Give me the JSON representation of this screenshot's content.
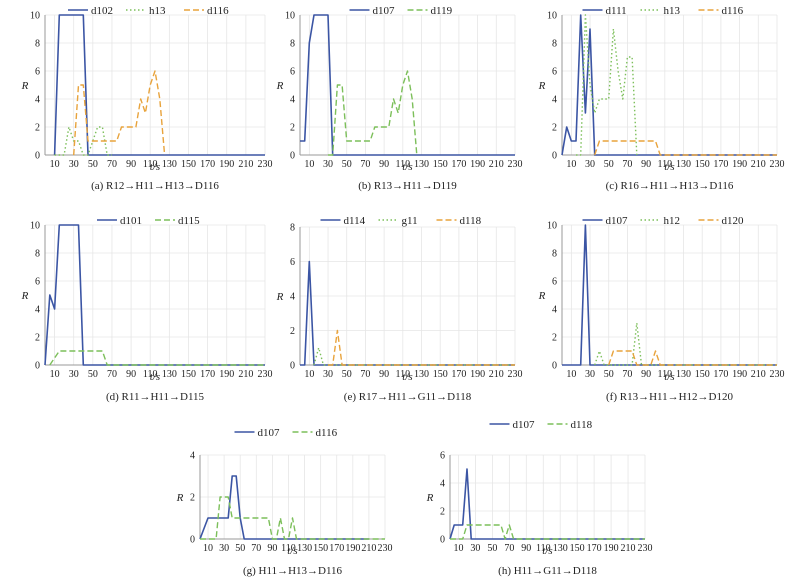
{
  "colors": {
    "blue": "#3b55a4",
    "green": "#7cbf5a",
    "orange": "#e8a33c",
    "axis": "#999999",
    "grid": "#e6e6e6"
  },
  "chart_data": [
    {
      "type": "line",
      "caption": "(a) R12→H11→H13→D116",
      "xlabel": "t/s",
      "ylabel": "R",
      "xlim": [
        0,
        230
      ],
      "ylim": [
        0,
        10
      ],
      "xticks": [
        10,
        30,
        50,
        70,
        90,
        110,
        130,
        150,
        170,
        190,
        210,
        230
      ],
      "yticks": [
        0,
        2,
        4,
        6,
        8,
        10
      ],
      "legend": "top",
      "series": [
        {
          "name": "d102",
          "color": "#3b55a4",
          "dash": "solid",
          "x": [
            10,
            15,
            40,
            45,
            230
          ],
          "y": [
            0,
            10,
            10,
            0,
            0
          ]
        },
        {
          "name": "h13",
          "color": "#7cbf5a",
          "dash": "dot",
          "x": [
            10,
            20,
            25,
            30,
            35,
            40,
            45,
            50,
            55,
            60,
            65,
            70
          ],
          "y": [
            0,
            0,
            2,
            1,
            1,
            0,
            0,
            1,
            2,
            2,
            0,
            0
          ]
        },
        {
          "name": "d116",
          "color": "#e8a33c",
          "dash": "dash",
          "x": [
            30,
            35,
            40,
            45,
            50,
            55,
            60,
            65,
            70,
            75,
            80,
            85,
            90,
            95,
            100,
            105,
            110,
            115,
            120,
            125
          ],
          "y": [
            0,
            5,
            5,
            1,
            1,
            1,
            1,
            1,
            1,
            1,
            2,
            2,
            2,
            2,
            4,
            3,
            5,
            6,
            4,
            0
          ]
        }
      ]
    },
    {
      "type": "line",
      "caption": "(b) R13→H11→D119",
      "xlabel": "t/s",
      "ylabel": "R",
      "xlim": [
        0,
        230
      ],
      "ylim": [
        0,
        10
      ],
      "xticks": [
        10,
        30,
        50,
        70,
        90,
        110,
        130,
        150,
        170,
        190,
        210,
        230
      ],
      "yticks": [
        0,
        2,
        4,
        6,
        8,
        10
      ],
      "legend": "top",
      "series": [
        {
          "name": "d107",
          "color": "#3b55a4",
          "dash": "solid",
          "x": [
            0,
            5,
            10,
            15,
            30,
            35,
            230
          ],
          "y": [
            1,
            1,
            8,
            10,
            10,
            0,
            0
          ]
        },
        {
          "name": "d119",
          "color": "#7cbf5a",
          "dash": "dash",
          "x": [
            30,
            35,
            40,
            45,
            50,
            55,
            60,
            65,
            70,
            75,
            80,
            85,
            90,
            95,
            100,
            105,
            110,
            115,
            120,
            125
          ],
          "y": [
            0,
            0,
            5,
            5,
            1,
            1,
            1,
            1,
            1,
            1,
            2,
            2,
            2,
            2,
            4,
            3,
            5,
            6,
            4,
            0
          ]
        }
      ]
    },
    {
      "type": "line",
      "caption": "(c) R16→H11→H13→D116",
      "xlabel": "t/s",
      "ylabel": "R",
      "xlim": [
        0,
        230
      ],
      "ylim": [
        0,
        10
      ],
      "xticks": [
        10,
        30,
        50,
        70,
        90,
        110,
        130,
        150,
        170,
        190,
        210,
        230
      ],
      "yticks": [
        0,
        2,
        4,
        6,
        8,
        10
      ],
      "legend": "top",
      "series": [
        {
          "name": "d111",
          "color": "#3b55a4",
          "dash": "solid",
          "x": [
            0,
            5,
            10,
            15,
            20,
            25,
            30,
            35,
            230
          ],
          "y": [
            0,
            2,
            1,
            1,
            10,
            3,
            9,
            0,
            0
          ]
        },
        {
          "name": "h13",
          "color": "#7cbf5a",
          "dash": "dot",
          "x": [
            15,
            20,
            25,
            30,
            35,
            40,
            45,
            50,
            55,
            60,
            65,
            70,
            75,
            80
          ],
          "y": [
            0,
            0,
            10,
            5,
            3,
            4,
            4,
            4,
            9,
            6,
            4,
            7,
            7,
            0
          ]
        },
        {
          "name": "d116",
          "color": "#e8a33c",
          "dash": "dash",
          "x": [
            35,
            40,
            50,
            100,
            105,
            230
          ],
          "y": [
            0,
            1,
            1,
            1,
            0,
            0
          ]
        }
      ]
    },
    {
      "type": "line",
      "caption": "(d) R11→H11→D115",
      "xlabel": "t/s",
      "ylabel": "R",
      "xlim": [
        0,
        230
      ],
      "ylim": [
        0,
        10
      ],
      "xticks": [
        10,
        30,
        50,
        70,
        90,
        110,
        130,
        150,
        170,
        190,
        210,
        230
      ],
      "yticks": [
        0,
        2,
        4,
        6,
        8,
        10
      ],
      "legend": "top",
      "series": [
        {
          "name": "d101",
          "color": "#3b55a4",
          "dash": "solid",
          "x": [
            0,
            5,
            10,
            15,
            35,
            40,
            230
          ],
          "y": [
            0,
            5,
            4,
            10,
            10,
            0,
            0
          ]
        },
        {
          "name": "d115",
          "color": "#7cbf5a",
          "dash": "dash",
          "x": [
            5,
            15,
            60,
            65,
            230
          ],
          "y": [
            0,
            1,
            1,
            0,
            0
          ]
        }
      ]
    },
    {
      "type": "line",
      "caption": "(e) R17→H11→G11→D118",
      "xlabel": "t/s",
      "ylabel": "R",
      "xlim": [
        0,
        230
      ],
      "ylim": [
        0,
        8
      ],
      "xticks": [
        10,
        30,
        50,
        70,
        90,
        110,
        130,
        150,
        170,
        190,
        210,
        230
      ],
      "yticks": [
        0,
        2,
        4,
        6,
        8
      ],
      "legend": "top",
      "series": [
        {
          "name": "d114",
          "color": "#3b55a4",
          "dash": "solid",
          "x": [
            0,
            5,
            10,
            15,
            230
          ],
          "y": [
            0,
            0,
            6,
            0,
            0
          ]
        },
        {
          "name": "g11",
          "color": "#7cbf5a",
          "dash": "dot",
          "x": [
            15,
            20,
            25,
            230
          ],
          "y": [
            0,
            1,
            0,
            0
          ]
        },
        {
          "name": "d118",
          "color": "#e8a33c",
          "dash": "dash",
          "x": [
            30,
            35,
            40,
            45,
            230
          ],
          "y": [
            0,
            0,
            2,
            0,
            0
          ]
        }
      ]
    },
    {
      "type": "line",
      "caption": "(f) R13→H11→H12→D120",
      "xlabel": "t/s",
      "ylabel": "R",
      "xlim": [
        0,
        230
      ],
      "ylim": [
        0,
        10
      ],
      "xticks": [
        10,
        30,
        50,
        70,
        90,
        110,
        130,
        150,
        170,
        190,
        210,
        230
      ],
      "yticks": [
        0,
        2,
        4,
        6,
        8,
        10
      ],
      "legend": "top",
      "series": [
        {
          "name": "d107",
          "color": "#3b55a4",
          "dash": "solid",
          "x": [
            0,
            20,
            25,
            30,
            230
          ],
          "y": [
            0,
            0,
            10,
            0,
            0
          ]
        },
        {
          "name": "h12",
          "color": "#7cbf5a",
          "dash": "dot",
          "x": [
            35,
            40,
            45,
            75,
            80,
            85,
            230
          ],
          "y": [
            0,
            1,
            0,
            0,
            3,
            0,
            0
          ]
        },
        {
          "name": "d120",
          "color": "#e8a33c",
          "dash": "dash",
          "x": [
            50,
            55,
            75,
            80,
            95,
            100,
            105,
            230
          ],
          "y": [
            0,
            1,
            1,
            0,
            0,
            1,
            0,
            0
          ]
        }
      ]
    },
    {
      "type": "line",
      "caption": "(g) H11→H13→D116",
      "xlabel": "t/s",
      "ylabel": "R",
      "xlim": [
        0,
        230
      ],
      "ylim": [
        0,
        4
      ],
      "xticks": [
        10,
        30,
        50,
        70,
        90,
        110,
        130,
        150,
        170,
        190,
        210,
        230
      ],
      "yticks": [
        0,
        2,
        4
      ],
      "legend": "top",
      "series": [
        {
          "name": "d107",
          "color": "#3b55a4",
          "dash": "solid",
          "x": [
            0,
            10,
            30,
            35,
            40,
            45,
            50,
            55,
            60,
            210
          ],
          "y": [
            0,
            1,
            1,
            1,
            3,
            3,
            1,
            0,
            0,
            0
          ]
        },
        {
          "name": "d116",
          "color": "#7cbf5a",
          "dash": "dash",
          "x": [
            0,
            20,
            25,
            30,
            35,
            40,
            45,
            50,
            55,
            60,
            65,
            70,
            75,
            80,
            85,
            90,
            95,
            100,
            105,
            110,
            115,
            120,
            125,
            230
          ],
          "y": [
            0,
            0,
            2,
            2,
            2,
            1,
            1,
            1,
            1,
            1,
            1,
            1,
            1,
            1,
            1,
            0,
            0,
            1,
            0,
            0,
            1,
            0,
            0,
            0
          ]
        }
      ]
    },
    {
      "type": "line",
      "caption": "(h) H11→G11→D118",
      "xlabel": "t/s",
      "ylabel": "R",
      "xlim": [
        0,
        230
      ],
      "ylim": [
        0,
        6
      ],
      "xticks": [
        10,
        30,
        50,
        70,
        90,
        110,
        130,
        150,
        170,
        190,
        210,
        230
      ],
      "yticks": [
        0,
        2,
        4,
        6
      ],
      "legend": "top",
      "series": [
        {
          "name": "d107",
          "color": "#3b55a4",
          "dash": "solid",
          "x": [
            0,
            5,
            15,
            20,
            25,
            230
          ],
          "y": [
            0,
            1,
            1,
            5,
            0,
            0
          ]
        },
        {
          "name": "d118",
          "color": "#7cbf5a",
          "dash": "dash",
          "x": [
            0,
            15,
            20,
            55,
            60,
            65,
            70,
            75,
            230
          ],
          "y": [
            0,
            0,
            1,
            1,
            1,
            0,
            1,
            0,
            0
          ]
        }
      ]
    }
  ]
}
